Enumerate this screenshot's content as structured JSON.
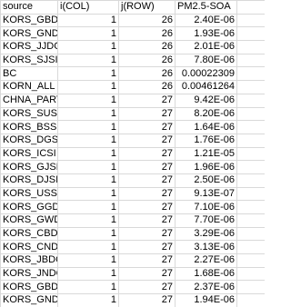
{
  "table": {
    "header": [
      "source",
      "i(COL)",
      "j(ROW)",
      "PM2.5-SOA"
    ],
    "rows": [
      [
        "KORS_GBDO",
        "1",
        "26",
        "2.40E-06"
      ],
      [
        "KORS_GNDO",
        "1",
        "26",
        "1.93E-06"
      ],
      [
        "KORS_JJDO",
        "1",
        "26",
        "2.01E-06"
      ],
      [
        "KORS_SJSI",
        "1",
        "26",
        "7.80E-06"
      ],
      [
        "BC",
        "1",
        "26",
        "0.00022309"
      ],
      [
        "KORN_ALL",
        "1",
        "26",
        "0.00461264"
      ],
      [
        "CHNA_PART",
        "1",
        "27",
        "9.42E-06"
      ],
      [
        "KORS_SUSI",
        "1",
        "27",
        "8.20E-06"
      ],
      [
        "KORS_BSSI",
        "1",
        "27",
        "1.64E-06"
      ],
      [
        "KORS_DGSI",
        "1",
        "27",
        "1.76E-06"
      ],
      [
        "KORS_ICSI",
        "1",
        "27",
        "1.21E-05"
      ],
      [
        "KORS_GJSI",
        "1",
        "27",
        "1.96E-06"
      ],
      [
        "KORS_DJSI",
        "1",
        "27",
        "2.50E-06"
      ],
      [
        "KORS_USSI",
        "1",
        "27",
        "9.13E-07"
      ],
      [
        "KORS_GGDO",
        "1",
        "27",
        "7.10E-06"
      ],
      [
        "KORS_GWDO",
        "1",
        "27",
        "7.70E-06"
      ],
      [
        "KORS_CBDO",
        "1",
        "27",
        "3.29E-06"
      ],
      [
        "KORS_CNDO",
        "1",
        "27",
        "3.13E-06"
      ],
      [
        "KORS_JBDO",
        "1",
        "27",
        "2.27E-06"
      ],
      [
        "KORS_JNDO",
        "1",
        "27",
        "1.68E-06"
      ],
      [
        "KORS_GBDO",
        "1",
        "27",
        "2.37E-06"
      ],
      [
        "KORS_GNDO",
        "1",
        "27",
        "1.94E-06"
      ]
    ]
  }
}
